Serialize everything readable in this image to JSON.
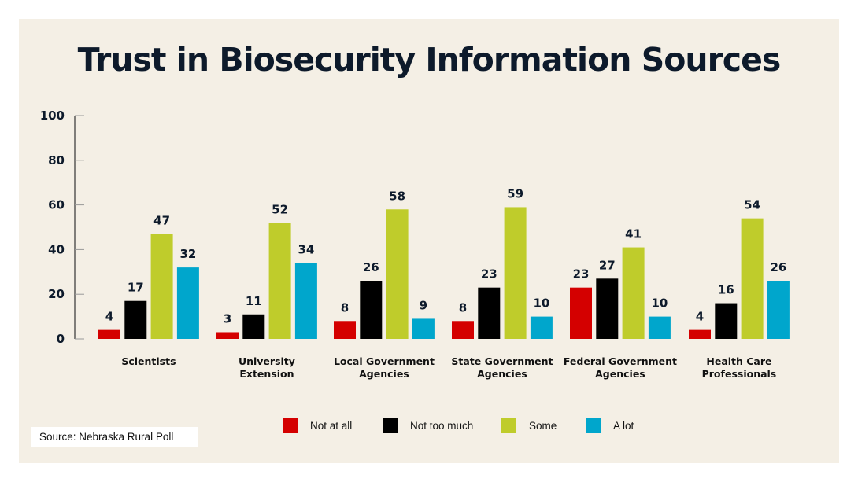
{
  "chart_data": {
    "type": "bar",
    "title": "Trust in Biosecurity Information Sources",
    "categories": [
      "Scientists",
      "University Extension",
      "Local Government Agencies",
      "State Government Agencies",
      "Federal Government Agencies",
      "Health Care Professionals"
    ],
    "category_lines": [
      [
        "Scientists"
      ],
      [
        "University",
        "Extension"
      ],
      [
        "Local Government",
        "Agencies"
      ],
      [
        "State Government",
        "Agencies"
      ],
      [
        "Federal Government",
        "Agencies"
      ],
      [
        "Health Care",
        "Professionals"
      ]
    ],
    "series": [
      {
        "name": "Not at all",
        "color": "#d40000",
        "values": [
          4,
          3,
          8,
          8,
          23,
          4
        ]
      },
      {
        "name": "Not too much",
        "color": "#000000",
        "values": [
          17,
          11,
          26,
          23,
          27,
          16
        ]
      },
      {
        "name": "Some",
        "color": "#bfcc2b",
        "values": [
          47,
          52,
          58,
          59,
          41,
          54
        ]
      },
      {
        "name": "A lot",
        "color": "#00a6cc",
        "values": [
          32,
          34,
          9,
          10,
          10,
          26
        ]
      }
    ],
    "ylim": [
      0,
      100
    ],
    "yticks": [
      0,
      20,
      40,
      60,
      80,
      100
    ],
    "xlabel": "",
    "ylabel": "",
    "grid": false,
    "legend_placement": "bottom"
  },
  "source": "Source: Nebraska Rural Poll"
}
